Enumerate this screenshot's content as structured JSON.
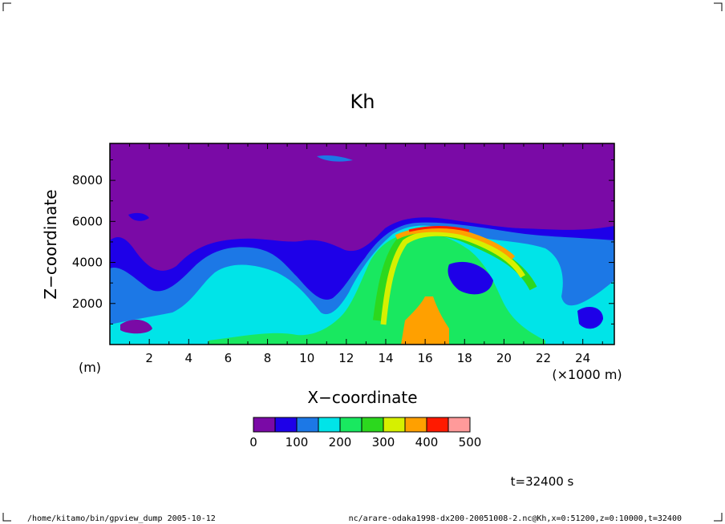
{
  "chart_data": {
    "type": "heatmap",
    "title": "Kh",
    "xlabel": "X−coordinate",
    "ylabel": "Z−coordinate",
    "x_unit": "(×1000 m)",
    "y_unit": "(m)",
    "xlim": [
      0,
      25.6
    ],
    "ylim": [
      0,
      9800
    ],
    "x_ticks": [
      "2",
      "4",
      "6",
      "8",
      "10",
      "12",
      "14",
      "16",
      "18",
      "20",
      "22",
      "24"
    ],
    "y_ticks": [
      "2000",
      "4000",
      "6000",
      "8000"
    ],
    "colorbar": {
      "levels": [
        0,
        50,
        100,
        150,
        200,
        250,
        300,
        350,
        400,
        450,
        500
      ],
      "tick_labels": [
        "0",
        "100",
        "200",
        "300",
        "400",
        "500"
      ],
      "colors": [
        "#7a0aa6",
        "#1e00e8",
        "#1c78e6",
        "#00e4e8",
        "#19e860",
        "#2cd81e",
        "#d6f000",
        "#ffa000",
        "#ff1a00",
        "#ff9a9a"
      ]
    },
    "time_label": "t=32400 s",
    "footer_left": "/home/kitamo/bin/gpview_dump  2005-10-12",
    "footer_right": "nc/arare-odaka1998-dx200-20051008-2.nc@Kh,x=0:51200,z=0:10000,t=32400"
  }
}
